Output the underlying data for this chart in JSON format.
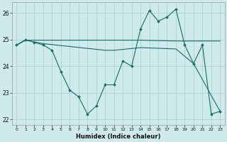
{
  "xlabel": "Humidex (Indice chaleur)",
  "bg_color": "#ceeaea",
  "grid_color": "#aed4d4",
  "line_color": "#1a6b6b",
  "xlim": [
    -0.5,
    23.5
  ],
  "ylim": [
    21.8,
    26.4
  ],
  "yticks": [
    22,
    23,
    24,
    25,
    26
  ],
  "xticks": [
    0,
    1,
    2,
    3,
    4,
    5,
    6,
    7,
    8,
    9,
    10,
    11,
    12,
    13,
    14,
    15,
    16,
    17,
    18,
    19,
    20,
    21,
    22,
    23
  ],
  "series1_x": [
    0,
    1,
    2,
    3,
    4,
    5,
    6,
    7,
    8,
    9,
    10,
    11,
    12,
    13,
    14,
    15,
    16,
    17,
    18,
    19,
    20,
    21,
    22,
    23
  ],
  "series1_y": [
    24.8,
    25.0,
    24.9,
    24.8,
    24.6,
    23.8,
    23.1,
    22.85,
    22.2,
    22.5,
    23.3,
    23.3,
    24.2,
    24.0,
    25.4,
    26.1,
    25.7,
    25.85,
    26.15,
    24.8,
    24.1,
    24.8,
    22.2,
    22.3
  ],
  "series2_x": [
    0,
    1,
    3,
    14,
    18,
    20,
    23
  ],
  "series2_y": [
    24.8,
    24.98,
    24.98,
    24.98,
    24.95,
    24.95,
    24.95
  ],
  "series3_x": [
    0,
    1,
    3,
    10,
    11,
    14,
    18,
    20,
    23
  ],
  "series3_y": [
    24.8,
    24.98,
    24.85,
    24.6,
    24.6,
    24.7,
    24.65,
    24.1,
    22.3
  ]
}
